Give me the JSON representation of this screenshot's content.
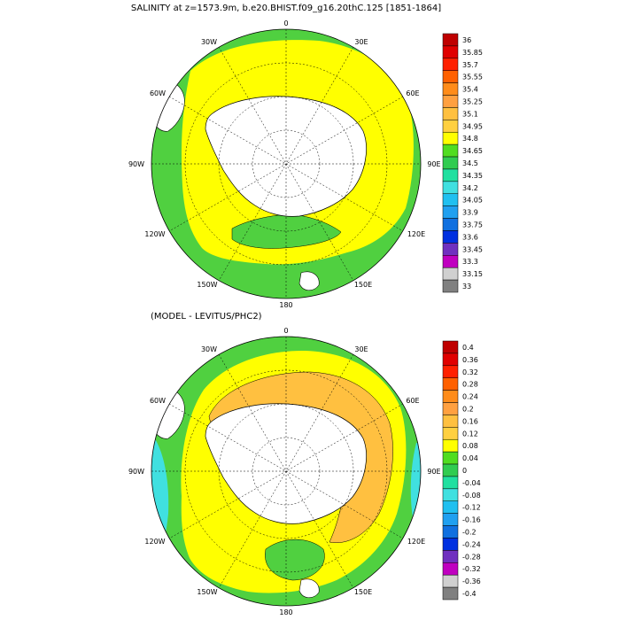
{
  "top_panel": {
    "title": "SALINITY at z=1573.9m, b.e20.BHIST.f09_g16.20thC.125 [1851-1864]",
    "lon_labels": {
      "n": "0",
      "nne": "30E",
      "ene": "60E",
      "e": "90E",
      "ese": "120E",
      "sse": "150E",
      "s": "180",
      "ssw": "150W",
      "wsw": "120W",
      "w": "90W",
      "wnw": "60W",
      "nnw": "30W"
    },
    "colorbar": {
      "labels": [
        "36",
        "35.85",
        "35.7",
        "35.55",
        "35.4",
        "35.25",
        "35.1",
        "34.95",
        "34.8",
        "34.65",
        "34.5",
        "34.35",
        "34.2",
        "34.05",
        "33.9",
        "33.75",
        "33.6",
        "33.45",
        "33.3",
        "33.15",
        "33"
      ],
      "colors": [
        "#bf0000",
        "#e00000",
        "#ff2000",
        "#ff6000",
        "#ff8c1a",
        "#ffa040",
        "#ffc040",
        "#ffd040",
        "#ffff00",
        "#50dd20",
        "#30cc50",
        "#20e0a0",
        "#40e0e0",
        "#20c0f0",
        "#20a0f0",
        "#1070e0",
        "#0030e0",
        "#7030c0",
        "#c000c0",
        "#d0d0d0",
        "#808080"
      ]
    },
    "colors": {
      "ocean_north": "#50d040",
      "ocean_south": "#ffff00",
      "land": "#ffffff"
    }
  },
  "bottom_panel": {
    "title": "(MODEL - LEVITUS/PHC2)",
    "lon_labels": {
      "n": "0",
      "nne": "30E",
      "ene": "60E",
      "e": "90E",
      "ese": "120E",
      "sse": "150E",
      "s": "180",
      "ssw": "150W",
      "wsw": "120W",
      "w": "90W",
      "wnw": "60W",
      "nnw": "30W"
    },
    "colorbar": {
      "labels": [
        "0.4",
        "0.36",
        "0.32",
        "0.28",
        "0.24",
        "0.2",
        "0.16",
        "0.12",
        "0.08",
        "0.04",
        "0",
        "-0.04",
        "-0.08",
        "-0.12",
        "-0.16",
        "-0.2",
        "-0.24",
        "-0.28",
        "-0.32",
        "-0.36",
        "-0.4"
      ],
      "colors": [
        "#bf0000",
        "#e00000",
        "#ff2000",
        "#ff6000",
        "#ff8c1a",
        "#ffa040",
        "#ffc040",
        "#ffd040",
        "#ffff00",
        "#50dd20",
        "#30cc50",
        "#20e0a0",
        "#40e0e0",
        "#20c0f0",
        "#20a0f0",
        "#1070e0",
        "#0030e0",
        "#7030c0",
        "#c000c0",
        "#d0d0d0",
        "#808080"
      ]
    },
    "colors": {
      "ocean_main": "#ffff00",
      "anomaly_high": "#ffc040",
      "anomaly_low": "#50d040",
      "land": "#ffffff"
    }
  }
}
